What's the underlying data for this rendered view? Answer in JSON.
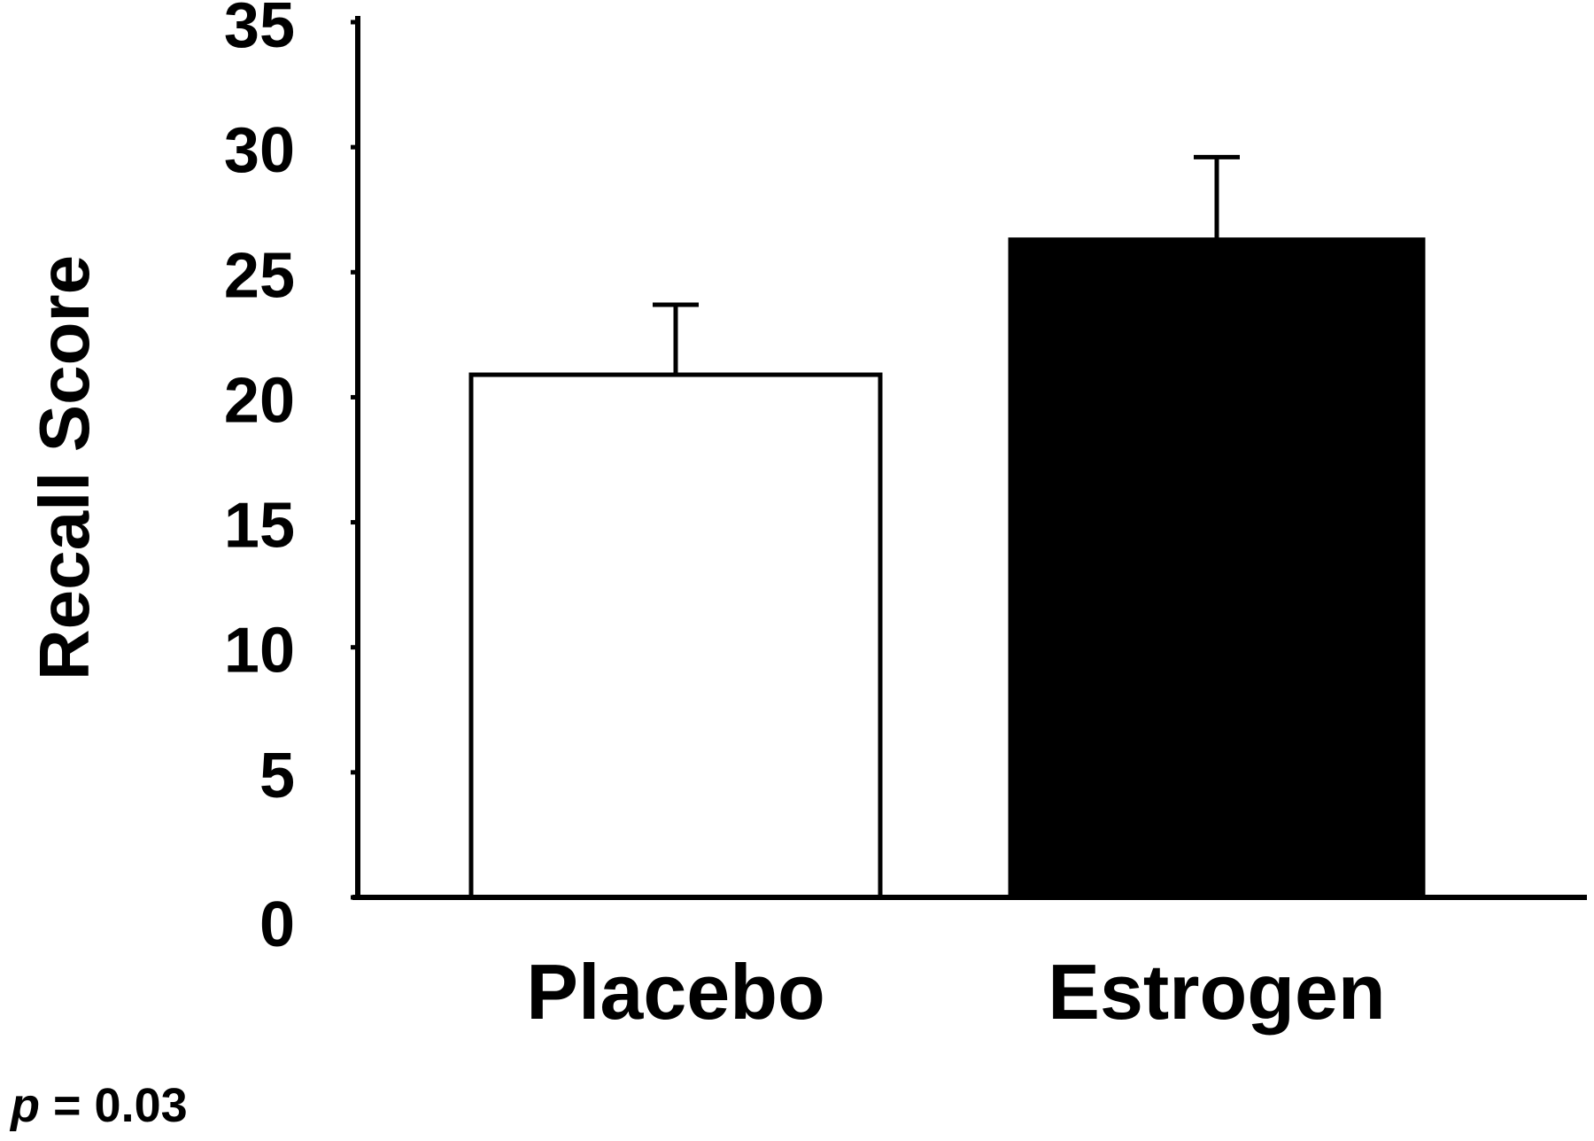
{
  "chart_data": {
    "type": "bar",
    "title": "",
    "xlabel": "",
    "ylabel": "Recall Score",
    "categories": [
      "Placebo",
      "Estrogen"
    ],
    "values": [
      20.9,
      26.3
    ],
    "error_upper": [
      2.8,
      3.3
    ],
    "bar_colors": [
      "#ffffff",
      "#000000"
    ],
    "ylim": [
      0,
      35
    ],
    "yticks": [
      0,
      5,
      10,
      15,
      20,
      25,
      30,
      35
    ],
    "grid": false,
    "annotation": {
      "italic": "p",
      "text": " = 0.03"
    }
  }
}
